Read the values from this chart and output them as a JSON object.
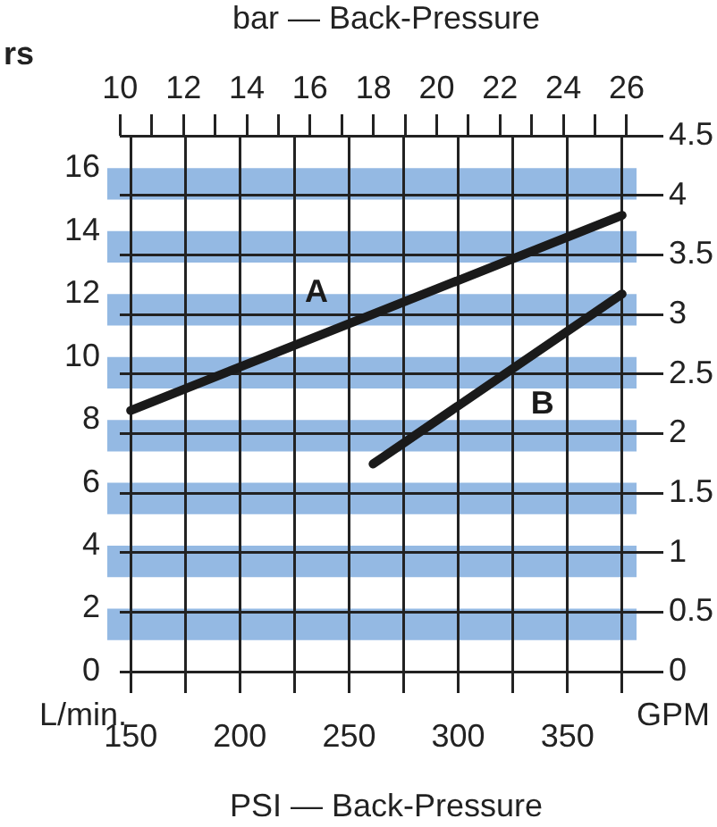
{
  "chart_data": {
    "type": "line",
    "xlabel": "PSI — Back-Pressure",
    "x2label": "bar — Back-Pressure",
    "ylabel": "L/min.",
    "y2label": "GPM",
    "annotations": [
      "rs"
    ],
    "series": [
      {
        "name": "A",
        "color": "#1a1a1a",
        "x": [
          150,
          375
        ],
        "values": [
          8.3,
          14.5
        ]
      },
      {
        "name": "B",
        "color": "#1a1a1a",
        "x": [
          261,
          375
        ],
        "values": [
          6.6,
          12.0
        ]
      }
    ],
    "xlim": [
      145,
      389
    ],
    "xticks": [
      150,
      {
        "value": 175,
        "label": null
      },
      200,
      {
        "value": 225,
        "label": null
      },
      250,
      {
        "value": 275,
        "label": null
      },
      300,
      {
        "value": 325,
        "label": null
      },
      350,
      {
        "value": 375,
        "label": null
      }
    ],
    "x2lim": [
      9.99,
      26.82
    ],
    "x2ticks": [
      10,
      {
        "value": 11,
        "label": null
      },
      12,
      {
        "value": 13,
        "label": null
      },
      14,
      {
        "value": 15,
        "label": null
      },
      16,
      {
        "value": 17,
        "label": null
      },
      18,
      {
        "value": 19,
        "label": null
      },
      20,
      {
        "value": 21,
        "label": null
      },
      22,
      {
        "value": 23,
        "label": null
      },
      24,
      {
        "value": 25,
        "label": null
      },
      26
    ],
    "ylim": [
      0,
      17.03
    ],
    "yticks": [
      0,
      2,
      4,
      6,
      8,
      10,
      12,
      14,
      16
    ],
    "y2lim": [
      0,
      4.5
    ],
    "y2ticks": [
      0,
      0.5,
      1,
      1.5,
      2,
      2.5,
      3,
      3.5,
      4,
      4.5
    ],
    "bands": [
      {
        "axis": "y",
        "from": 1,
        "to": 2,
        "color": "#94b9e3"
      },
      {
        "axis": "y",
        "from": 3,
        "to": 4,
        "color": "#94b9e3"
      },
      {
        "axis": "y",
        "from": 5,
        "to": 6,
        "color": "#94b9e3"
      },
      {
        "axis": "y",
        "from": 7,
        "to": 8,
        "color": "#94b9e3"
      },
      {
        "axis": "y",
        "from": 9,
        "to": 10,
        "color": "#94b9e3"
      },
      {
        "axis": "y",
        "from": 11,
        "to": 12,
        "color": "#94b9e3"
      },
      {
        "axis": "y",
        "from": 13,
        "to": 14,
        "color": "#94b9e3"
      },
      {
        "axis": "y",
        "from": 15,
        "to": 16,
        "color": "#94b9e3"
      }
    ],
    "grid": true,
    "legend": false,
    "marker": "none",
    "line_style": "solid"
  }
}
